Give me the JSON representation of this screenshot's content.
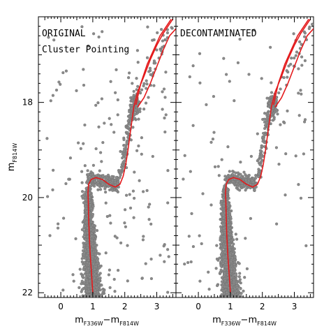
{
  "chart_data": [
    {
      "type": "scatter",
      "panel_label": [
        "ORIGINAL",
        "Cluster Pointing"
      ],
      "xlabel": {
        "m1": "m",
        "sub1": "F336W",
        "minus": "−",
        "m2": "m",
        "sub2": "F814W"
      },
      "ylabel": {
        "m": "m",
        "sub": "F814W"
      },
      "xlim": [
        -0.7,
        3.6
      ],
      "ylim": [
        22.1,
        16.2
      ],
      "y_inverted": true,
      "xticks": [
        0,
        1,
        2,
        3
      ],
      "yticks": [
        18,
        20,
        22
      ],
      "marker_color": "#8a8a8a",
      "isochrone_color": "#e41a1c",
      "isochrone": {
        "ms": [
          [
            1.0,
            22.0
          ],
          [
            0.96,
            21.6
          ],
          [
            0.92,
            21.2
          ],
          [
            0.89,
            20.8
          ],
          [
            0.87,
            20.4
          ],
          [
            0.86,
            20.1
          ],
          [
            0.85,
            19.9
          ],
          [
            0.87,
            19.72
          ],
          [
            0.95,
            19.62
          ],
          [
            1.1,
            19.58
          ],
          [
            1.3,
            19.62
          ],
          [
            1.5,
            19.72
          ],
          [
            1.7,
            19.78
          ],
          [
            1.85,
            19.72
          ],
          [
            1.95,
            19.55
          ],
          [
            2.03,
            19.3
          ],
          [
            2.1,
            19.0
          ],
          [
            2.16,
            18.7
          ],
          [
            2.22,
            18.4
          ],
          [
            2.28,
            18.1
          ],
          [
            2.4,
            17.78
          ],
          [
            2.6,
            17.45
          ],
          [
            2.8,
            17.1
          ],
          [
            3.0,
            16.8
          ],
          [
            3.2,
            16.55
          ],
          [
            3.4,
            16.35
          ],
          [
            3.5,
            16.25
          ]
        ],
        "hb_top": [
          [
            2.35,
            18.05
          ],
          [
            2.5,
            17.6
          ],
          [
            2.7,
            17.2
          ],
          [
            2.9,
            16.9
          ],
          [
            3.1,
            16.6
          ],
          [
            3.3,
            16.4
          ],
          [
            3.45,
            16.25
          ]
        ],
        "hb_bottom": [
          [
            2.4,
            18.1
          ],
          [
            2.6,
            17.9
          ],
          [
            2.8,
            17.6
          ],
          [
            3.0,
            17.25
          ],
          [
            3.2,
            16.9
          ],
          [
            3.4,
            16.6
          ],
          [
            3.6,
            16.45
          ]
        ]
      },
      "populations": {
        "main_sequence": {
          "x_range": [
            0.75,
            1.35
          ],
          "y_range": [
            19.8,
            22.1
          ],
          "count": 1400
        },
        "subgiant_branch": {
          "x_range": [
            0.85,
            1.8
          ],
          "y_range": [
            19.5,
            19.85
          ],
          "count": 250
        },
        "red_giant_branch": {
          "x_range": [
            1.8,
            2.35
          ],
          "y_range": [
            17.9,
            19.6
          ],
          "count": 120
        },
        "red_clump": {
          "x_range": [
            2.2,
            2.5
          ],
          "y_range": [
            17.8,
            18.3
          ],
          "count": 90
        },
        "field_stars": {
          "count": 160
        }
      }
    },
    {
      "type": "scatter",
      "panel_label": [
        "DECONTAMINATED",
        ""
      ],
      "xlabel": {
        "m1": "m",
        "sub1": "F336W",
        "minus": "−",
        "m2": "m",
        "sub2": "F814W"
      },
      "xlim": [
        -0.7,
        3.6
      ],
      "ylim": [
        22.1,
        16.2
      ],
      "y_inverted": true,
      "xticks": [
        0,
        1,
        2,
        3
      ],
      "yticks": [
        18,
        20,
        22
      ],
      "marker_color": "#8a8a8a",
      "isochrone_color": "#e41a1c",
      "populations": {
        "main_sequence": {
          "x_range": [
            0.75,
            1.35
          ],
          "y_range": [
            19.8,
            22.1
          ],
          "count": 1400
        },
        "subgiant_branch": {
          "x_range": [
            0.85,
            1.8
          ],
          "y_range": [
            19.5,
            19.85
          ],
          "count": 250
        },
        "red_giant_branch": {
          "x_range": [
            1.8,
            2.35
          ],
          "y_range": [
            17.9,
            19.6
          ],
          "count": 120
        },
        "red_clump": {
          "x_range": [
            2.2,
            2.5
          ],
          "y_range": [
            17.8,
            18.3
          ],
          "count": 90
        },
        "field_stars": {
          "count": 90
        }
      }
    }
  ]
}
